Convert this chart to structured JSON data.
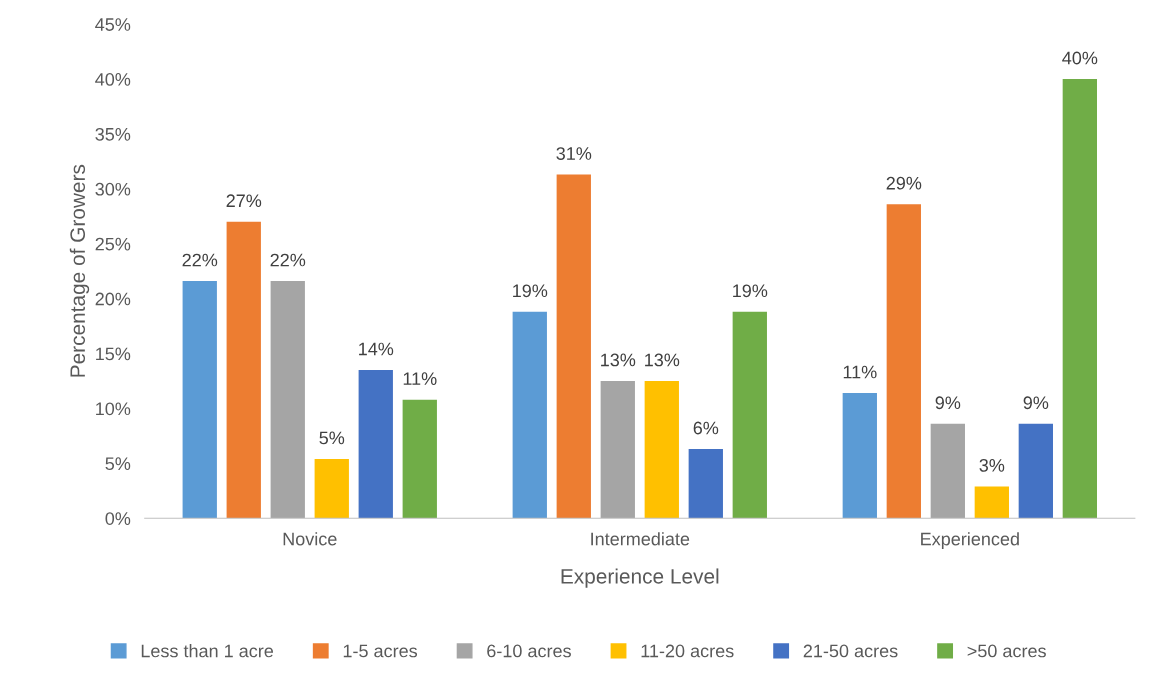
{
  "chart_data": {
    "type": "bar",
    "categories": [
      "Novice",
      "Intermediate",
      "Experienced"
    ],
    "xlabel": "Experience Level",
    "ylabel": "Percentage of Growers",
    "series": [
      {
        "name": "Less than 1 acre",
        "color": "#5b9bd5",
        "values": [
          21.6,
          18.8,
          11.4
        ],
        "value_labels": [
          "22%",
          "19%",
          "11%"
        ]
      },
      {
        "name": "1-5 acres",
        "color": "#ed7d31",
        "values": [
          27.0,
          31.3,
          28.6
        ],
        "value_labels": [
          "27%",
          "31%",
          "29%"
        ]
      },
      {
        "name": "6-10 acres",
        "color": "#a5a5a5",
        "values": [
          21.6,
          12.5,
          8.6
        ],
        "value_labels": [
          "22%",
          "13%",
          "9%"
        ]
      },
      {
        "name": "11-20 acres",
        "color": "#ffc000",
        "values": [
          5.4,
          12.5,
          2.9
        ],
        "value_labels": [
          "5%",
          "13%",
          "3%"
        ]
      },
      {
        "name": "21-50 acres",
        "color": "#4472c4",
        "values": [
          13.5,
          6.3,
          8.6
        ],
        "value_labels": [
          "14%",
          "6%",
          "9%"
        ]
      },
      {
        "name": ">50 acres",
        "color": "#70ad47",
        "values": [
          10.8,
          18.8,
          40.0
        ],
        "value_labels": [
          "11%",
          "19%",
          "40%"
        ]
      }
    ],
    "ylim": [
      0,
      45
    ],
    "yticks": [
      {
        "value": 0,
        "label": "0%"
      },
      {
        "value": 5,
        "label": "5%"
      },
      {
        "value": 10,
        "label": "10%"
      },
      {
        "value": 15,
        "label": "15%"
      },
      {
        "value": 20,
        "label": "20%"
      },
      {
        "value": 25,
        "label": "25%"
      },
      {
        "value": 30,
        "label": "30%"
      },
      {
        "value": 35,
        "label": "35%"
      },
      {
        "value": 40,
        "label": "40%"
      },
      {
        "value": 45,
        "label": "45%"
      }
    ],
    "grid": false,
    "legend": "bottom"
  }
}
